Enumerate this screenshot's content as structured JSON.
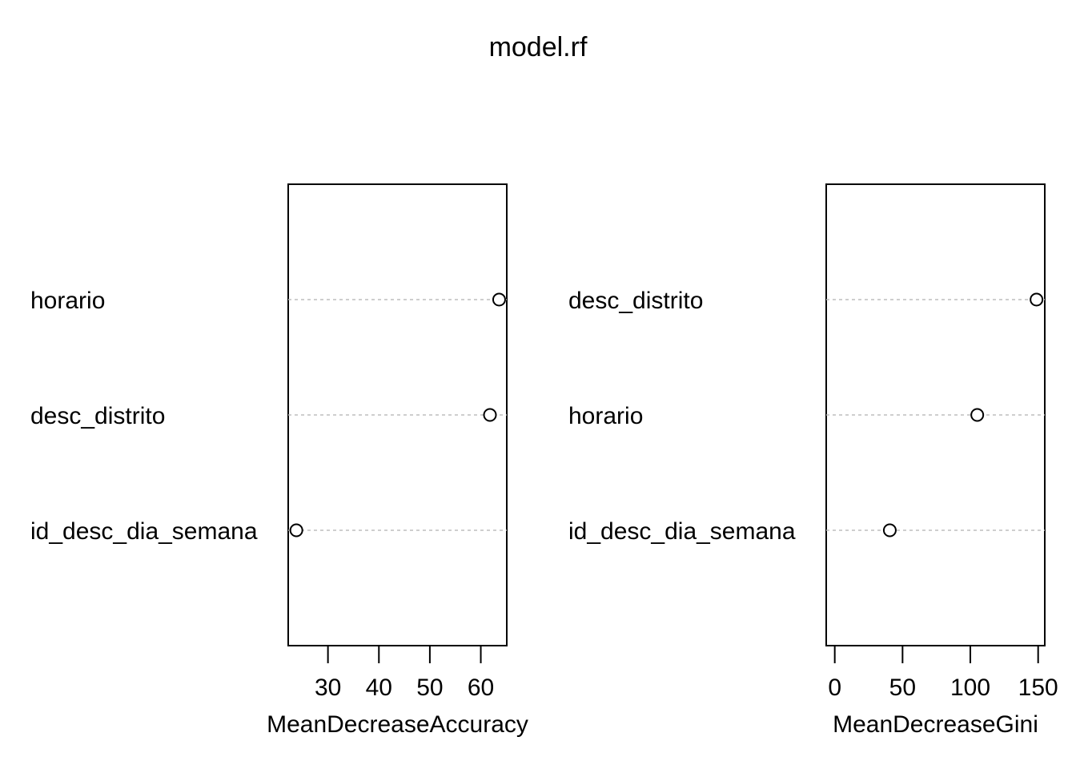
{
  "chart_data": {
    "type": "scatter",
    "title": "model.rf",
    "panels": [
      {
        "categories": [
          "horario",
          "desc_distrito",
          "id_desc_dia_semana"
        ],
        "values": [
          63.6,
          61.8,
          23.8
        ],
        "xlabel": "MeanDecreaseAccuracy",
        "xlim": [
          22.2,
          65.1
        ],
        "ticks": [
          30,
          40,
          50,
          60
        ]
      },
      {
        "categories": [
          "desc_distrito",
          "horario",
          "id_desc_dia_semana"
        ],
        "values": [
          148.8,
          105.1,
          40.6
        ],
        "xlabel": "MeanDecreaseGini",
        "xlim": [
          -6.3,
          154.9
        ],
        "ticks": [
          0,
          50,
          100,
          150
        ]
      }
    ],
    "grid": "dotted horizontal lines per variable",
    "legend": "none",
    "colors": {
      "point_stroke": "#000000",
      "dotline": "#bebebe"
    }
  }
}
